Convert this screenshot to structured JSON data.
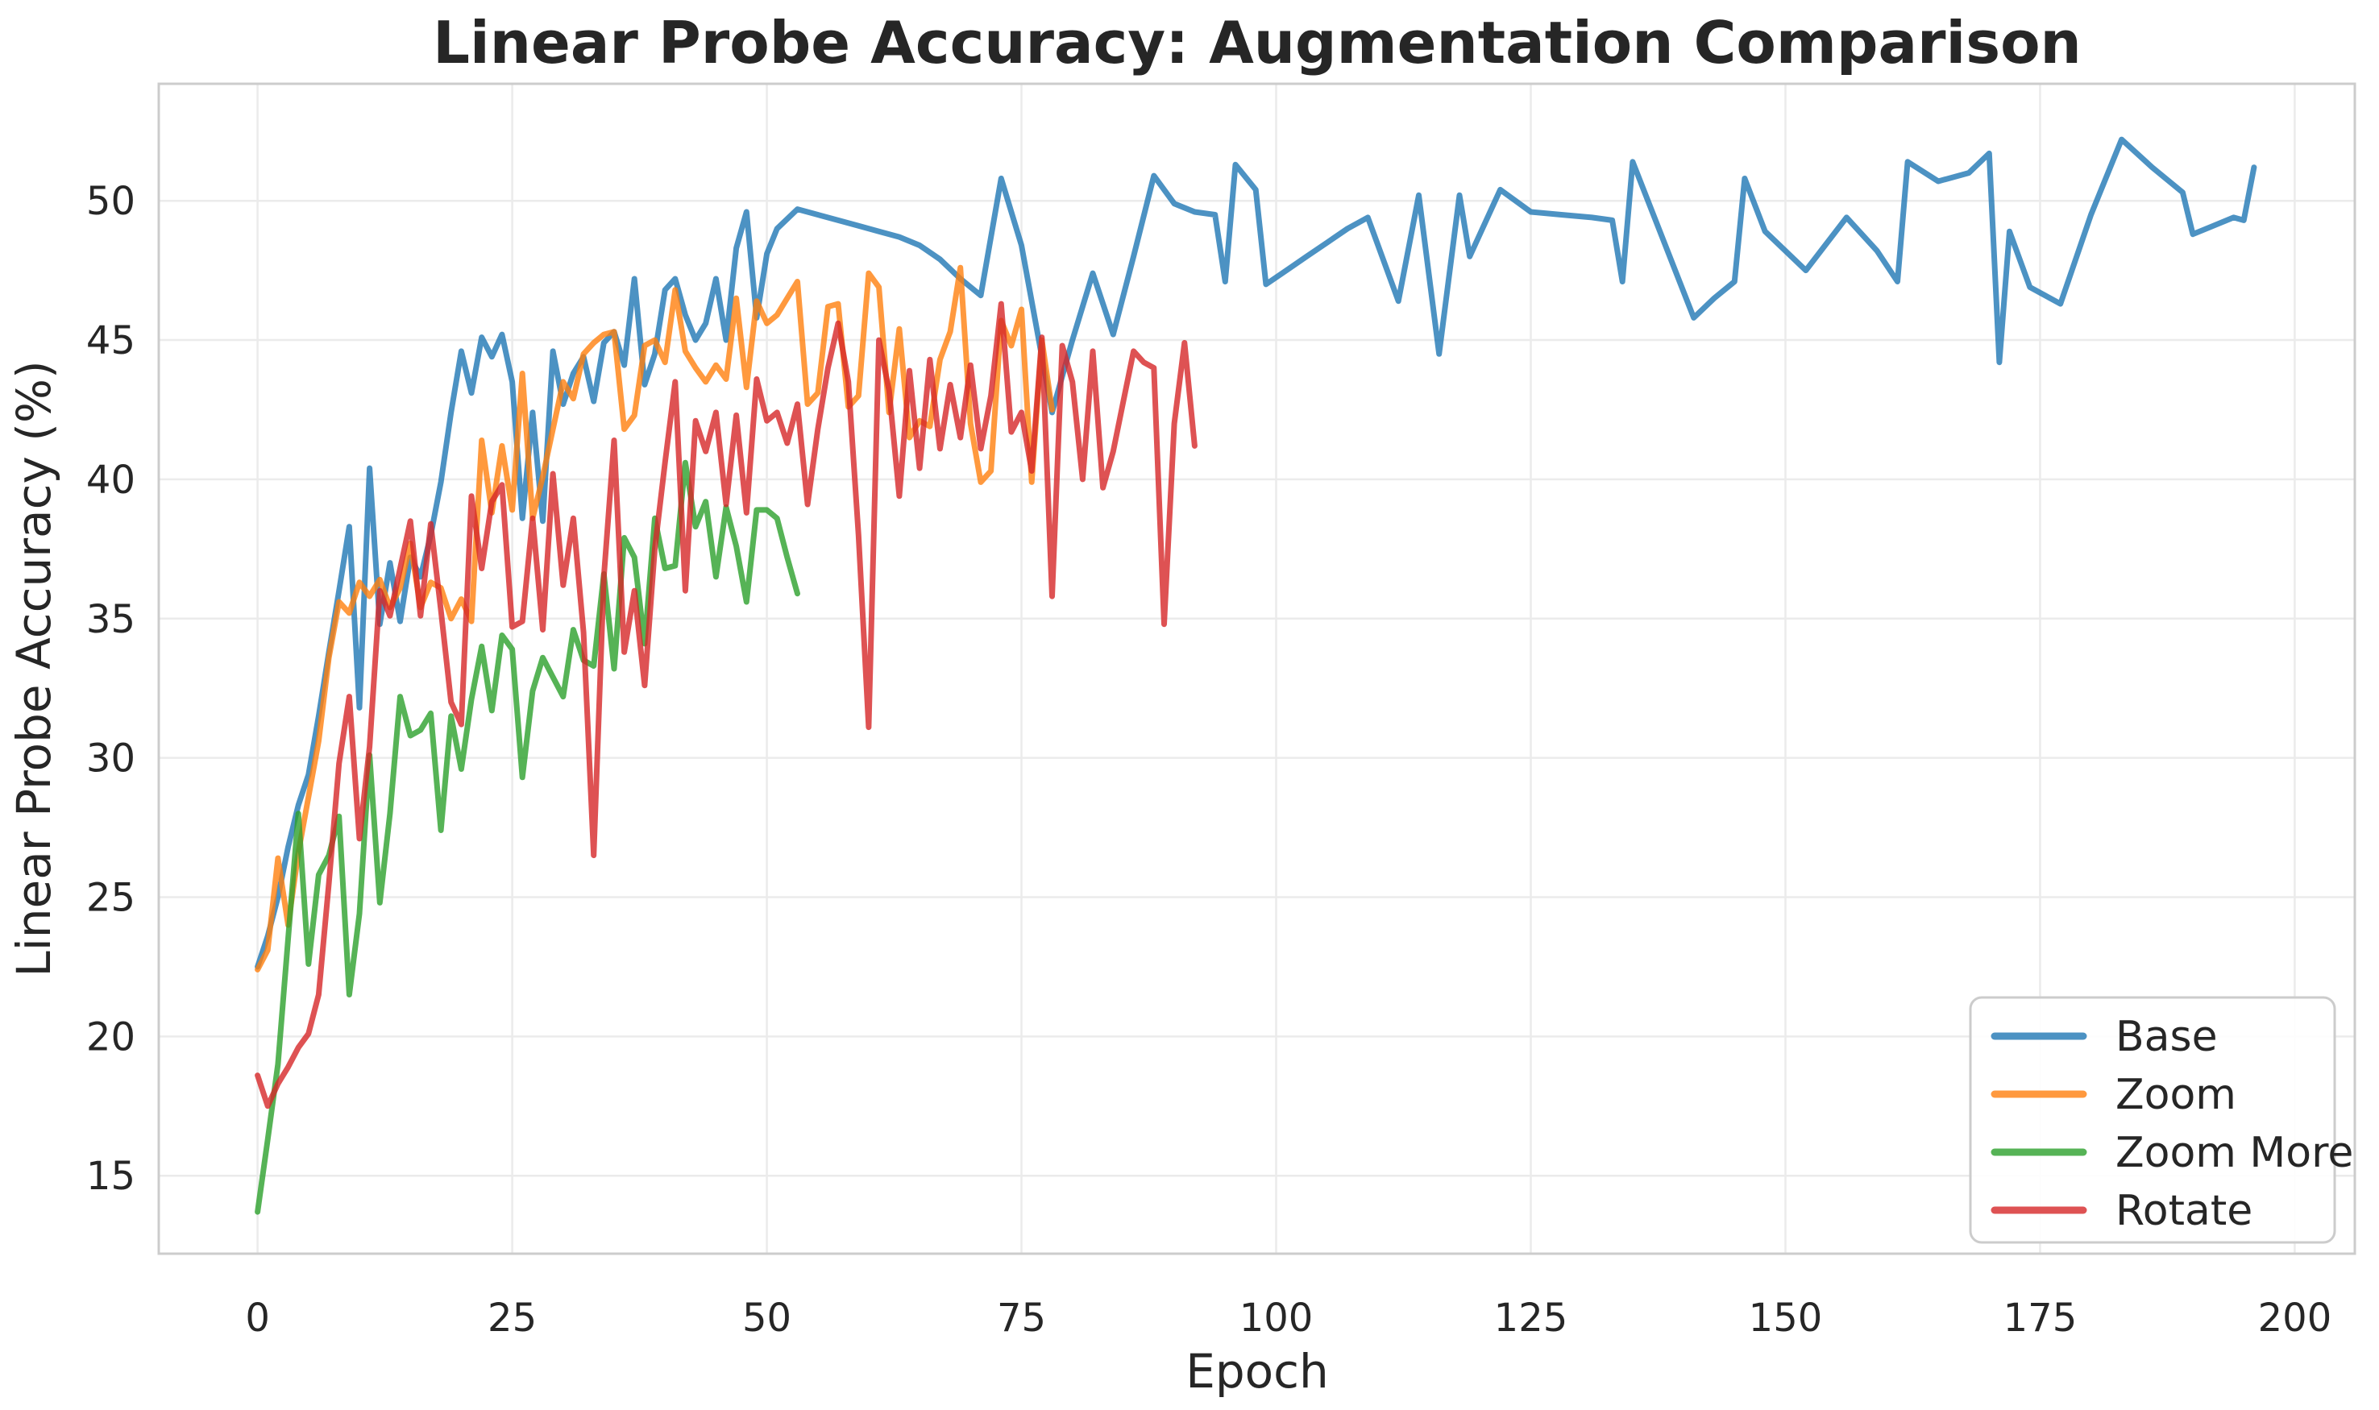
{
  "chart_data": {
    "type": "line",
    "title": "Linear Probe Accuracy: Augmentation Comparison",
    "xlabel": "Epoch",
    "ylabel": "Linear Probe Accuracy (%)",
    "xlim": [
      -9.7,
      205.9
    ],
    "ylim": [
      12.2,
      54.2
    ],
    "xticks": [
      0,
      25,
      50,
      75,
      100,
      125,
      150,
      175,
      200
    ],
    "yticks": [
      15,
      20,
      25,
      30,
      35,
      40,
      45,
      50
    ],
    "grid": true,
    "legend_position": "lower right",
    "colors": {
      "background": "#ffffff",
      "grid": "#ebebeb",
      "spine": "#cccccc",
      "text": "#262626",
      "base": "#1f77b4",
      "zoom": "#ff7f0e",
      "zoom_more": "#2ca02c",
      "rotate": "#d62728"
    },
    "series": [
      {
        "name": "Base",
        "color": "#1f77b4",
        "x": [
          0,
          1,
          2,
          3,
          4,
          5,
          6,
          7,
          8,
          9,
          10,
          11,
          12,
          13,
          14,
          15,
          16,
          17,
          18,
          19,
          20,
          21,
          22,
          23,
          24,
          25,
          26,
          27,
          28,
          29,
          30,
          31,
          32,
          33,
          34,
          35,
          36,
          37,
          38,
          39,
          40,
          41,
          42,
          43,
          44,
          45,
          46,
          47,
          48,
          49,
          50,
          51,
          53,
          55,
          57,
          59,
          61,
          63,
          65,
          67,
          69,
          71,
          73,
          75,
          78,
          80,
          82,
          84,
          86,
          88,
          90,
          92,
          94,
          95,
          96,
          98,
          99,
          101,
          103,
          105,
          107,
          109,
          112,
          114,
          116,
          118,
          119,
          122,
          125,
          128,
          131,
          133,
          134,
          135,
          138,
          141,
          143,
          145,
          146,
          148,
          152,
          156,
          159,
          161,
          162,
          165,
          168,
          170,
          171,
          172,
          174,
          177,
          180,
          183,
          186,
          189,
          190,
          192,
          194,
          195,
          196
        ],
        "y": [
          22.5,
          23.6,
          25.0,
          26.8,
          28.3,
          29.4,
          31.5,
          33.8,
          36.0,
          38.3,
          31.8,
          40.4,
          34.8,
          37.0,
          34.9,
          37.2,
          36.5,
          38.0,
          39.9,
          42.4,
          44.6,
          43.1,
          45.1,
          44.4,
          45.2,
          43.5,
          38.6,
          42.4,
          38.5,
          44.6,
          42.7,
          43.8,
          44.4,
          42.8,
          44.9,
          45.3,
          44.1,
          47.2,
          43.4,
          44.5,
          46.8,
          47.2,
          45.9,
          45.0,
          45.6,
          47.2,
          45.0,
          48.3,
          49.6,
          45.8,
          48.1,
          49.0,
          49.7,
          49.5,
          49.3,
          49.1,
          48.9,
          48.7,
          48.4,
          47.9,
          47.2,
          46.6,
          50.8,
          48.4,
          42.4,
          45.0,
          47.4,
          45.2,
          48.0,
          50.9,
          49.9,
          49.6,
          49.5,
          47.1,
          51.3,
          50.4,
          47.0,
          47.5,
          48.0,
          48.5,
          49.0,
          49.4,
          46.4,
          50.2,
          44.5,
          50.2,
          48.0,
          50.4,
          49.6,
          49.5,
          49.4,
          49.3,
          47.1,
          51.4,
          48.6,
          45.8,
          46.5,
          47.1,
          50.8,
          48.9,
          47.5,
          49.4,
          48.2,
          47.1,
          51.4,
          50.7,
          51.0,
          51.7,
          44.2,
          48.9,
          46.9,
          46.3,
          49.5,
          52.2,
          51.2,
          50.3,
          48.8,
          49.1,
          49.4,
          49.3,
          51.2
        ]
      },
      {
        "name": "Zoom",
        "color": "#ff7f0e",
        "x": [
          0,
          1,
          2,
          3,
          4,
          5,
          6,
          7,
          8,
          9,
          10,
          11,
          12,
          13,
          14,
          15,
          16,
          17,
          18,
          19,
          20,
          21,
          22,
          23,
          24,
          25,
          26,
          27,
          28,
          29,
          30,
          31,
          32,
          33,
          34,
          35,
          36,
          37,
          38,
          39,
          40,
          41,
          42,
          43,
          44,
          45,
          46,
          47,
          48,
          49,
          50,
          51,
          52,
          53,
          54,
          55,
          56,
          57,
          58,
          59,
          60,
          61,
          62,
          63,
          64,
          65,
          66,
          67,
          68,
          69,
          70,
          71,
          72,
          73,
          74,
          75,
          76,
          77,
          78
        ],
        "y": [
          22.4,
          23.1,
          26.4,
          24.0,
          26.6,
          28.6,
          30.6,
          33.6,
          35.6,
          35.2,
          36.3,
          35.8,
          36.4,
          35.4,
          36.1,
          37.7,
          35.4,
          36.3,
          36.1,
          35.0,
          35.7,
          34.9,
          41.4,
          38.8,
          41.2,
          38.9,
          43.8,
          38.6,
          40.1,
          41.8,
          43.5,
          42.9,
          44.5,
          44.9,
          45.2,
          45.3,
          41.8,
          42.3,
          44.8,
          45.0,
          44.2,
          46.8,
          44.6,
          44.0,
          43.5,
          44.1,
          43.6,
          46.5,
          43.3,
          46.4,
          45.6,
          45.9,
          46.5,
          47.1,
          42.7,
          43.1,
          46.2,
          46.3,
          42.6,
          43.0,
          47.4,
          46.9,
          42.4,
          45.4,
          41.5,
          42.1,
          41.9,
          44.3,
          45.3,
          47.6,
          42.0,
          39.9,
          40.3,
          45.7,
          44.8,
          46.1,
          39.9,
          45.0,
          42.5
        ]
      },
      {
        "name": "Zoom More",
        "color": "#2ca02c",
        "x": [
          0,
          1,
          2,
          3,
          4,
          5,
          6,
          7,
          8,
          9,
          10,
          11,
          12,
          13,
          14,
          15,
          16,
          17,
          18,
          19,
          20,
          21,
          22,
          23,
          24,
          25,
          26,
          27,
          28,
          29,
          30,
          31,
          32,
          33,
          34,
          35,
          36,
          37,
          38,
          39,
          40,
          41,
          42,
          43,
          44,
          45,
          46,
          47,
          48,
          49,
          50,
          51,
          52,
          53
        ],
        "y": [
          13.7,
          16.3,
          19.0,
          23.5,
          28.0,
          22.6,
          25.8,
          26.5,
          27.9,
          21.5,
          24.4,
          30.1,
          24.8,
          28.0,
          32.2,
          30.8,
          31.0,
          31.6,
          27.4,
          31.5,
          29.6,
          32.1,
          34.0,
          31.7,
          34.4,
          33.9,
          29.3,
          32.4,
          33.6,
          32.9,
          32.2,
          34.6,
          33.5,
          33.3,
          36.6,
          33.2,
          37.9,
          37.2,
          34.1,
          38.6,
          36.8,
          36.9,
          40.6,
          38.3,
          39.2,
          36.5,
          39.0,
          37.6,
          35.6,
          38.9,
          38.9,
          38.6,
          37.2,
          35.9
        ]
      },
      {
        "name": "Rotate",
        "color": "#d62728",
        "x": [
          0,
          1,
          2,
          3,
          4,
          5,
          6,
          7,
          8,
          9,
          10,
          11,
          12,
          13,
          14,
          15,
          16,
          17,
          18,
          19,
          20,
          21,
          22,
          23,
          24,
          25,
          26,
          27,
          28,
          29,
          30,
          31,
          32,
          33,
          34,
          35,
          36,
          37,
          38,
          39,
          40,
          41,
          42,
          43,
          44,
          45,
          46,
          47,
          48,
          49,
          50,
          51,
          52,
          53,
          54,
          55,
          56,
          57,
          58,
          59,
          60,
          61,
          62,
          63,
          64,
          65,
          66,
          67,
          68,
          69,
          70,
          71,
          72,
          73,
          74,
          75,
          76,
          77,
          78,
          79,
          80,
          81,
          82,
          83,
          84,
          85,
          86,
          87,
          88,
          89,
          90,
          91,
          92
        ],
        "y": [
          18.6,
          17.5,
          18.3,
          18.9,
          19.6,
          20.1,
          21.5,
          25.5,
          29.8,
          32.2,
          27.1,
          30.4,
          36.0,
          35.1,
          36.8,
          38.5,
          35.1,
          38.4,
          35.3,
          32.0,
          31.2,
          39.4,
          36.8,
          39.2,
          39.8,
          34.7,
          34.9,
          38.6,
          34.6,
          40.2,
          36.2,
          38.6,
          34.5,
          26.5,
          36.5,
          41.4,
          33.8,
          36.0,
          32.6,
          37.5,
          40.6,
          43.5,
          36.0,
          42.1,
          41.0,
          42.4,
          39.1,
          42.3,
          38.8,
          43.6,
          42.1,
          42.4,
          41.3,
          42.7,
          39.1,
          41.8,
          44.0,
          45.6,
          43.5,
          38.0,
          31.1,
          45.0,
          43.2,
          39.4,
          43.9,
          40.4,
          44.3,
          41.1,
          43.4,
          41.5,
          44.1,
          41.1,
          43.0,
          46.3,
          41.7,
          42.4,
          40.3,
          45.1,
          35.8,
          44.8,
          43.5,
          40.0,
          44.6,
          39.7,
          41.0,
          42.8,
          44.6,
          44.2,
          44.0,
          34.8,
          42.0,
          44.9,
          41.2
        ]
      }
    ]
  }
}
